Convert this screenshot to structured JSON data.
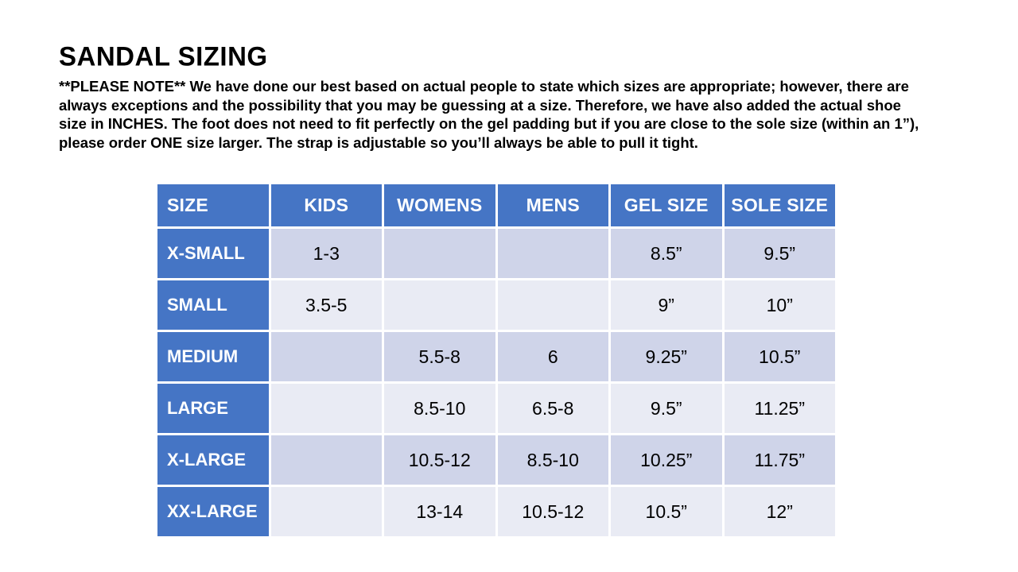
{
  "title": "SANDAL SIZING",
  "note_lines": [
    "**PLEASE NOTE**   We have done our best based on actual people to state which sizes are appropriate; however, there are",
    "always exceptions and the possibility that you may be guessing at a size.  Therefore, we have also added the actual shoe",
    "size in INCHES.  The foot does not need to fit perfectly on the gel padding but if you are close to the sole size (within an 1”),",
    "please order ONE size larger.  The strap is adjustable so you’ll always be able to pull it tight."
  ],
  "table": {
    "headers": [
      "SIZE",
      "KIDS",
      "WOMENS",
      "MENS",
      "GEL SIZE",
      "SOLE SIZE"
    ],
    "rows": [
      {
        "size": "X-SMALL",
        "kids": "1-3",
        "womens": "",
        "mens": "",
        "gel": "8.5”",
        "sole": "9.5”"
      },
      {
        "size": "SMALL",
        "kids": "3.5-5",
        "womens": "",
        "mens": "",
        "gel": "9”",
        "sole": "10”"
      },
      {
        "size": "MEDIUM",
        "kids": "",
        "womens": "5.5-8",
        "mens": "6",
        "gel": "9.25”",
        "sole": "10.5”"
      },
      {
        "size": "LARGE",
        "kids": "",
        "womens": "8.5-10",
        "mens": "6.5-8",
        "gel": "9.5”",
        "sole": "11.25”"
      },
      {
        "size": "X-LARGE",
        "kids": "",
        "womens": "10.5-12",
        "mens": "8.5-10",
        "gel": "10.25”",
        "sole": "11.75”"
      },
      {
        "size": "XX-LARGE",
        "kids": "",
        "womens": "13-14",
        "mens": "10.5-12",
        "gel": "10.5”",
        "sole": "12”"
      }
    ]
  },
  "colors": {
    "header_blue": "#4575C5",
    "row_band_dark": "#CFD4E9",
    "row_band_light": "#E9EBF4",
    "header_text": "#FFFFFF",
    "body_text": "#000000"
  }
}
